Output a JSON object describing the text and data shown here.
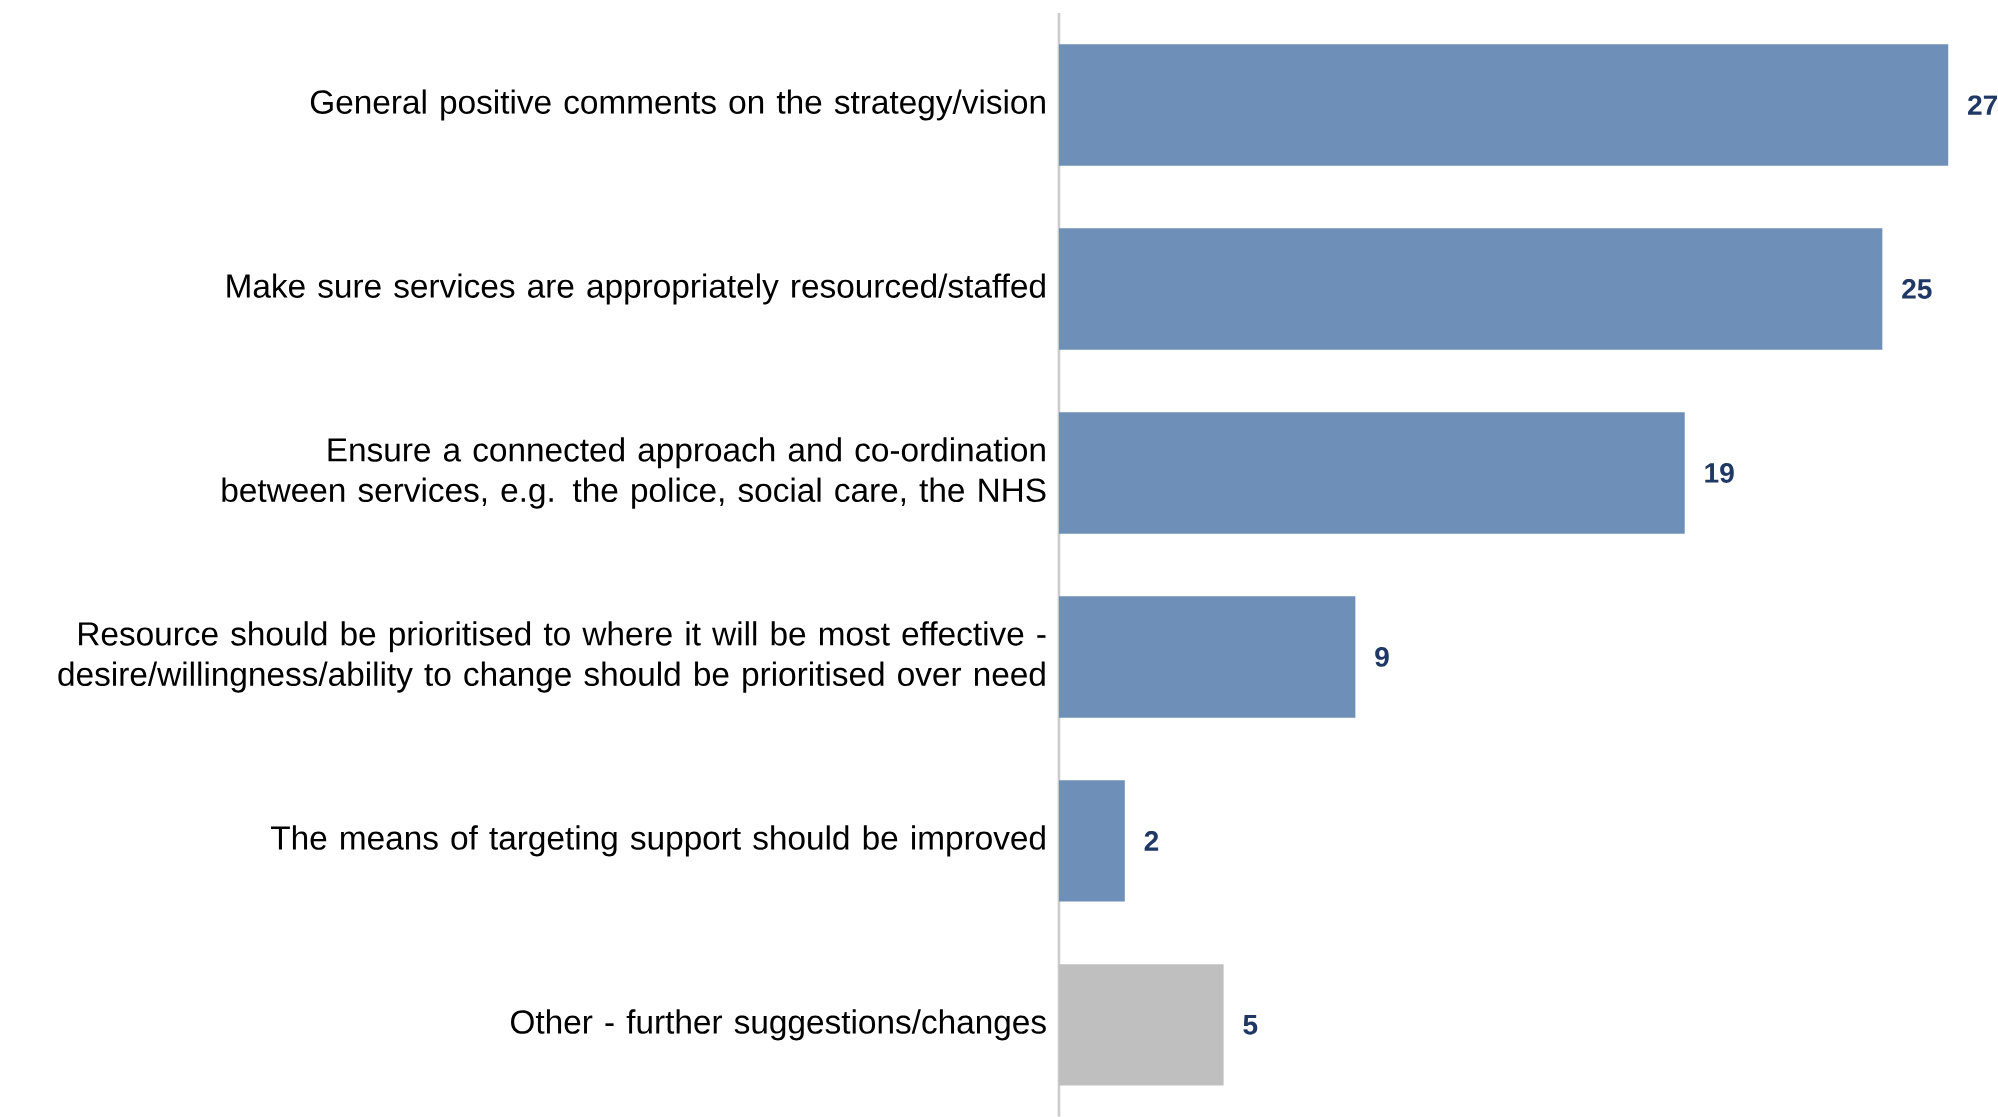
{
  "chart_data": {
    "type": "bar",
    "orientation": "horizontal",
    "categories": [
      "General positive comments on the strategy/vision",
      "Make sure services are appropriately resourced/staffed",
      "Ensure a connected approach and co-ordination between services, e.g. the police, social care, the NHS",
      "Resource should be prioritised to where it will be most effective - desire/willingness/ability to change should be prioritised over need",
      "The means of targeting support should be improved",
      "Other - further suggestions/changes"
    ],
    "values": [
      27,
      25,
      19,
      9,
      2,
      5
    ],
    "colors": [
      "#6e90b8",
      "#6e90b8",
      "#6e90b8",
      "#6e90b8",
      "#6e90b8",
      "#bfbfbf"
    ],
    "data_labels": true
  }
}
